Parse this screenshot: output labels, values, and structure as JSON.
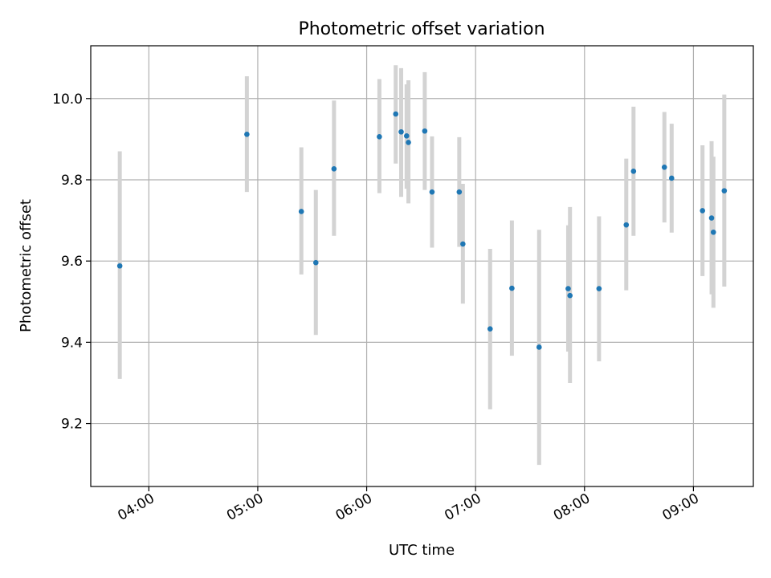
{
  "chart_data": {
    "type": "scatter",
    "title": "Photometric offset variation",
    "xlabel": "UTC time",
    "ylabel": "Photometric offset",
    "x_tick_labels": [
      "04:00",
      "05:00",
      "06:00",
      "07:00",
      "08:00",
      "09:00"
    ],
    "y_tick_labels": [
      "9.2",
      "9.4",
      "9.6",
      "9.8",
      "10.0"
    ],
    "y_ticks": [
      9.2,
      9.4,
      9.6,
      9.8,
      10.0
    ],
    "xlim": [
      "03:28",
      "09:33"
    ],
    "ylim": [
      9.045,
      10.13
    ],
    "grid": true,
    "marker_color": "#1f77b4",
    "errorbar_color": "#d3d3d3",
    "points": [
      {
        "x": "03:44",
        "y": 9.588,
        "lo": 9.31,
        "hi": 9.87
      },
      {
        "x": "04:54",
        "y": 9.912,
        "lo": 9.77,
        "hi": 10.055
      },
      {
        "x": "05:24",
        "y": 9.722,
        "lo": 9.567,
        "hi": 9.88
      },
      {
        "x": "05:32",
        "y": 9.596,
        "lo": 9.418,
        "hi": 9.775
      },
      {
        "x": "05:42",
        "y": 9.827,
        "lo": 9.662,
        "hi": 9.995
      },
      {
        "x": "06:07",
        "y": 9.906,
        "lo": 9.767,
        "hi": 10.048
      },
      {
        "x": "06:16",
        "y": 9.962,
        "lo": 9.84,
        "hi": 10.082
      },
      {
        "x": "06:19",
        "y": 9.918,
        "lo": 9.758,
        "hi": 10.075
      },
      {
        "x": "06:22",
        "y": 9.908,
        "lo": 9.778,
        "hi": 10.035
      },
      {
        "x": "06:23",
        "y": 9.892,
        "lo": 9.742,
        "hi": 10.045
      },
      {
        "x": "06:32",
        "y": 9.92,
        "lo": 9.775,
        "hi": 10.065
      },
      {
        "x": "06:36",
        "y": 9.77,
        "lo": 9.633,
        "hi": 9.907
      },
      {
        "x": "06:51",
        "y": 9.77,
        "lo": 9.635,
        "hi": 9.905
      },
      {
        "x": "06:53",
        "y": 9.642,
        "lo": 9.495,
        "hi": 9.79
      },
      {
        "x": "07:08",
        "y": 9.433,
        "lo": 9.235,
        "hi": 9.63
      },
      {
        "x": "07:20",
        "y": 9.533,
        "lo": 9.367,
        "hi": 9.7
      },
      {
        "x": "07:35",
        "y": 9.388,
        "lo": 9.098,
        "hi": 9.677
      },
      {
        "x": "07:51",
        "y": 9.532,
        "lo": 9.377,
        "hi": 9.688
      },
      {
        "x": "07:52",
        "y": 9.515,
        "lo": 9.3,
        "hi": 9.733
      },
      {
        "x": "08:08",
        "y": 9.532,
        "lo": 9.353,
        "hi": 9.71
      },
      {
        "x": "08:23",
        "y": 9.689,
        "lo": 9.528,
        "hi": 9.852
      },
      {
        "x": "08:27",
        "y": 9.821,
        "lo": 9.662,
        "hi": 9.98
      },
      {
        "x": "08:44",
        "y": 9.831,
        "lo": 9.695,
        "hi": 9.967
      },
      {
        "x": "08:48",
        "y": 9.804,
        "lo": 9.67,
        "hi": 9.938
      },
      {
        "x": "09:05",
        "y": 9.724,
        "lo": 9.563,
        "hi": 9.885
      },
      {
        "x": "09:10",
        "y": 9.706,
        "lo": 9.518,
        "hi": 9.895
      },
      {
        "x": "09:11",
        "y": 9.671,
        "lo": 9.485,
        "hi": 9.857
      },
      {
        "x": "09:17",
        "y": 9.773,
        "lo": 9.537,
        "hi": 10.01
      }
    ]
  }
}
